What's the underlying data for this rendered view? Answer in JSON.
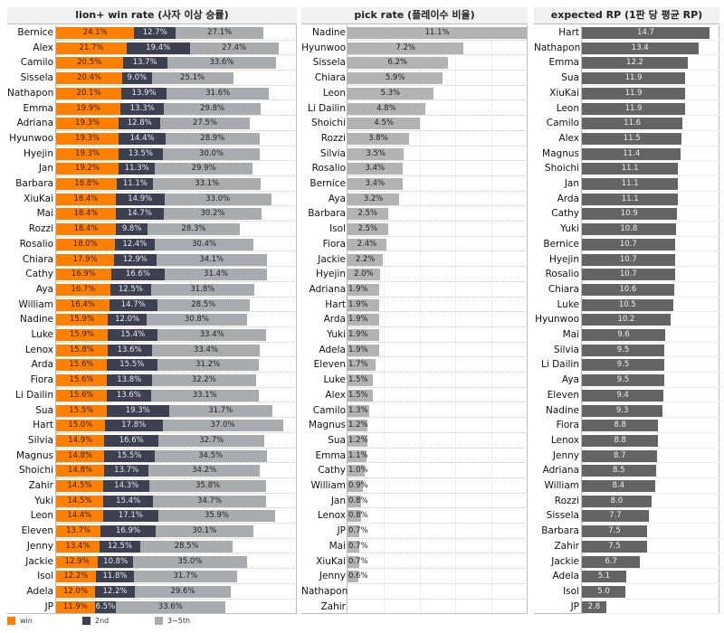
{
  "chart_data": [
    {
      "type": "bar",
      "orientation": "horizontal",
      "stacked": true,
      "title": "lion+ win rate (사자 이상 승률)",
      "xlabel": "",
      "ylabel": "",
      "unit": "%",
      "legend_position": "bottom-left",
      "grid": true,
      "categories": [
        "Bernice",
        "Alex",
        "Camilo",
        "Sissela",
        "Nathapon",
        "Emma",
        "Adriana",
        "Hyunwoo",
        "Hyejin",
        "Jan",
        "Barbara",
        "XiuKai",
        "Mai",
        "Rozzi",
        "Rosalio",
        "Chiara",
        "Cathy",
        "Aya",
        "William",
        "Nadine",
        "Luke",
        "Lenox",
        "Arda",
        "Fiora",
        "Li Dailin",
        "Sua",
        "Hart",
        "Silvia",
        "Magnus",
        "Shoichi",
        "Zahir",
        "Yuki",
        "Leon",
        "Eleven",
        "Jenny",
        "Jackie",
        "Isol",
        "Adela",
        "JP"
      ],
      "series": [
        {
          "name": "win",
          "color": "#ff8000",
          "values": [
            24.1,
            21.7,
            20.5,
            20.4,
            20.1,
            19.9,
            19.3,
            19.3,
            19.3,
            19.2,
            18.8,
            18.4,
            18.4,
            18.4,
            18.0,
            17.9,
            16.9,
            16.7,
            16.4,
            15.9,
            15.9,
            15.8,
            15.6,
            15.6,
            15.6,
            15.5,
            15.0,
            14.9,
            14.8,
            14.8,
            14.5,
            14.5,
            14.4,
            13.7,
            13.4,
            12.9,
            12.2,
            12.0,
            11.9
          ]
        },
        {
          "name": "2nd",
          "color": "#3d4050",
          "values": [
            12.7,
            19.4,
            13.7,
            9.0,
            13.9,
            13.3,
            12.8,
            14.4,
            13.5,
            11.3,
            11.1,
            14.9,
            14.7,
            9.8,
            12.4,
            12.9,
            16.6,
            12.5,
            14.7,
            12.0,
            15.4,
            13.6,
            15.5,
            13.8,
            13.6,
            19.3,
            17.8,
            16.6,
            15.5,
            13.7,
            14.3,
            15.4,
            17.1,
            16.9,
            12.5,
            10.8,
            11.8,
            12.2,
            6.5
          ]
        },
        {
          "name": "3~5th",
          "color": "#a9acaf",
          "values": [
            27.1,
            27.4,
            33.6,
            25.1,
            31.6,
            29.8,
            27.5,
            28.9,
            30.0,
            29.9,
            33.1,
            33.0,
            30.2,
            28.3,
            30.4,
            34.1,
            31.4,
            31.8,
            28.5,
            30.8,
            33.4,
            33.4,
            31.2,
            32.2,
            33.1,
            31.7,
            37.0,
            32.7,
            34.5,
            34.2,
            35.8,
            34.7,
            35.9,
            30.1,
            28.5,
            35.0,
            31.7,
            29.6,
            33.6
          ]
        }
      ],
      "xlim": [
        0,
        73
      ]
    },
    {
      "type": "bar",
      "orientation": "horizontal",
      "title": "pick rate (플레이수 비율)",
      "xlabel": "",
      "ylabel": "",
      "unit": "%",
      "grid": true,
      "color": "#b3b3b3",
      "categories": [
        "Nadine",
        "Hyunwoo",
        "Sissela",
        "Chiara",
        "Leon",
        "Li Dailin",
        "Shoichi",
        "Rozzi",
        "Silvia",
        "Rosalio",
        "Bernice",
        "Aya",
        "Barbara",
        "Isol",
        "Fiora",
        "Jackie",
        "Hyejin",
        "Adriana",
        "Hart",
        "Arda",
        "Yuki",
        "Adela",
        "Eleven",
        "Luke",
        "Alex",
        "Camilo",
        "Magnus",
        "Sua",
        "Emma",
        "Cathy",
        "William",
        "Jan",
        "Lenox",
        "JP",
        "Mai",
        "XiuKai",
        "Jenny",
        "Nathapon",
        "Zahir"
      ],
      "values": [
        11.1,
        7.2,
        6.2,
        5.9,
        5.3,
        4.8,
        4.5,
        3.8,
        3.5,
        3.4,
        3.4,
        3.2,
        2.5,
        2.5,
        2.4,
        2.2,
        2.0,
        1.9,
        1.9,
        1.9,
        1.9,
        1.9,
        1.7,
        1.5,
        1.5,
        1.3,
        1.2,
        1.2,
        1.1,
        1.0,
        0.9,
        0.8,
        0.8,
        0.7,
        0.7,
        0.7,
        0.6,
        null,
        null
      ],
      "value_labels": [
        "11.1%",
        "7.2%",
        "6.2%",
        "5.9%",
        "5.3%",
        "4.8%",
        "4.5%",
        "3.8%",
        "3.5%",
        "3.4%",
        "3.4%",
        "3.2%",
        "2.5%",
        "2.5%",
        "2.4%",
        "2.2%",
        "2.0%",
        "1.9%",
        "1.9%",
        "1.9%",
        "1.9%",
        "1.9%",
        "1.7%",
        "1.5%",
        "1.5%",
        "1.3%",
        "1.2%",
        "1.2%",
        "1.1%",
        "1.0%",
        "0.9%",
        "0.8%",
        "0.8%",
        "0.7%",
        "0.7%",
        "0.7%",
        "0.6%",
        "",
        ""
      ],
      "xlim": [
        0,
        11.1
      ]
    },
    {
      "type": "bar",
      "orientation": "horizontal",
      "title": "expected RP (1판 당 평균 RP)",
      "xlabel": "",
      "ylabel": "",
      "unit": "RP",
      "grid": true,
      "color": "#646464",
      "categories": [
        "Hart",
        "Nathapon",
        "Emma",
        "Sua",
        "XiuKai",
        "Leon",
        "Camilo",
        "Alex",
        "Magnus",
        "Shoichi",
        "Jan",
        "Arda",
        "Cathy",
        "Yuki",
        "Bernice",
        "Hyejin",
        "Rosalio",
        "Chiara",
        "Luke",
        "Hyunwoo",
        "Mai",
        "Silvia",
        "Li Dailin",
        "Aya",
        "Eleven",
        "Nadine",
        "Fiora",
        "Lenox",
        "Jenny",
        "Adriana",
        "William",
        "Rozzi",
        "Sissela",
        "Barbara",
        "Zahir",
        "Jackie",
        "Adela",
        "Isol",
        "JP"
      ],
      "values": [
        14.7,
        13.4,
        12.2,
        11.9,
        11.9,
        11.9,
        11.6,
        11.5,
        11.4,
        11.1,
        11.1,
        11.1,
        10.9,
        10.8,
        10.7,
        10.7,
        10.7,
        10.6,
        10.5,
        10.2,
        9.6,
        9.5,
        9.5,
        9.5,
        9.4,
        9.3,
        8.8,
        8.8,
        8.7,
        8.5,
        8.4,
        8.0,
        7.7,
        7.5,
        7.5,
        6.7,
        5.1,
        5.0,
        2.8
      ],
      "xlim": [
        0,
        14.7
      ]
    }
  ],
  "legend": {
    "items": [
      {
        "label": "win",
        "color": "#ff8000"
      },
      {
        "label": "2nd",
        "color": "#3d4050"
      },
      {
        "label": "3~5th",
        "color": "#a9acaf"
      }
    ]
  }
}
